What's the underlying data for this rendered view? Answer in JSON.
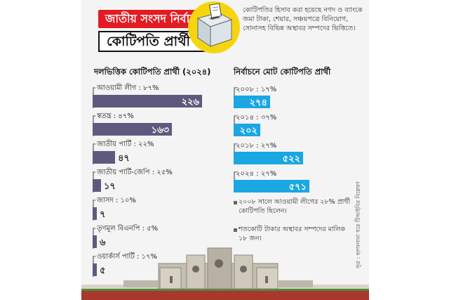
{
  "header": {
    "title_line1": "জাতীয় সংসদ নির্বাচনে",
    "title_line2": "কোটিপতি প্রার্থী",
    "intro": "কোটিপতির হিসাব করা হয়েছে নগদ ও ব্যাংকে জমা টাকা, শেয়ার, সঞ্চয়পত্রে বিনিয়োগ, সোনাসহ বিভিন্ন অস্থাবর সম্পদের ভিত্তিতে।"
  },
  "colors": {
    "red": "#e31b23",
    "yellow": "#f5d60e",
    "purple_bar": "#5f5a7d",
    "blue_bar": "#1aa7e2"
  },
  "chart_data": [
    {
      "type": "bar",
      "title": "দলভিত্তিক কোটিপতি প্রার্থী (২০২৪)",
      "categories": [
        "আওয়ামী লীগ : ৮৭%",
        "স্বতন্ত্র : ৪৭%",
        "জাতীয় পার্টি : ২২%",
        "জাতীয় পার্টি-জেপি : ২৫%",
        "জাসদ : ১০%",
        "তৃণমূল বিএনপি : ৫%",
        "ওয়ার্কার্স পার্টি : ১৭%"
      ],
      "values": [
        226,
        163,
        47,
        17,
        7,
        6,
        5
      ],
      "value_labels": [
        "২২৬",
        "১৬৩",
        "৪৭",
        "১৭",
        "৭",
        "৬",
        "৫"
      ],
      "xlim": [
        0,
        226
      ]
    },
    {
      "type": "bar",
      "title": "নির্বাচনে মোট কোটিপতি প্রার্থী",
      "categories": [
        "২০০৮ : ১৭%",
        "২০১৪ : ৩৭%",
        "২০১৮ : ২৭%",
        "২০২৪ : ২৭%"
      ],
      "values": [
        274,
        202,
        522,
        571
      ],
      "value_labels": [
        "২৭৪",
        "২০২",
        "৫২২",
        "৫৭১"
      ],
      "xlim": [
        0,
        571
      ]
    }
  ],
  "notes": [
    "২০০৮ সালে আওয়ামী লীগের ২৮% প্রার্থী কোটিপতি ছিলেন।",
    "শতকোটি টাকার অস্থাবর সম্পদের মালিক ১৮ জন।"
  ],
  "source": "সূত্র : হলফনামা ধরে টিআইবির বিশ্লেষণ"
}
